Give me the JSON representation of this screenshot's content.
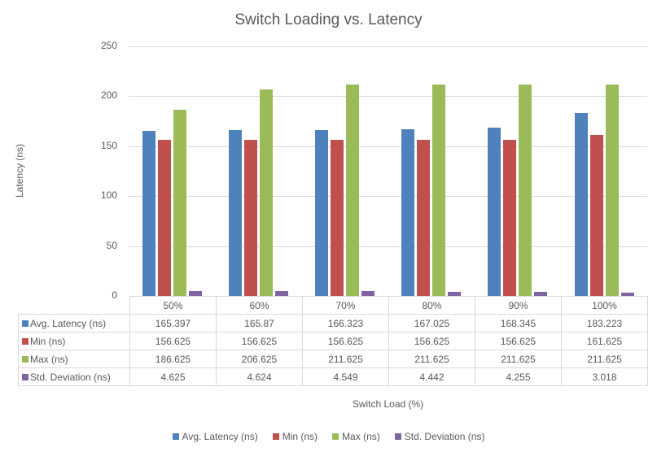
{
  "chart_data": {
    "type": "bar",
    "title": "Switch Loading vs. Latency",
    "xlabel": "Switch Load (%)",
    "ylabel": "Latency (ns)",
    "ylim": [
      0,
      250
    ],
    "yticks": [
      0,
      50,
      100,
      150,
      200,
      250
    ],
    "grid": true,
    "legend_position": "bottom",
    "data_table": true,
    "categories": [
      "50%",
      "60%",
      "70%",
      "80%",
      "90%",
      "100%"
    ],
    "series": [
      {
        "name": "Avg. Latency (ns)",
        "color": "#4f81bd",
        "values": [
          165.397,
          165.87,
          166.323,
          167.025,
          168.345,
          183.223
        ],
        "labels": [
          "165.397",
          "165.87",
          "166.323",
          "167.025",
          "168.345",
          "183.223"
        ]
      },
      {
        "name": "Min (ns)",
        "color": "#c0504d",
        "values": [
          156.625,
          156.625,
          156.625,
          156.625,
          156.625,
          161.625
        ],
        "labels": [
          "156.625",
          "156.625",
          "156.625",
          "156.625",
          "156.625",
          "161.625"
        ]
      },
      {
        "name": "Max (ns)",
        "color": "#9bbb59",
        "values": [
          186.625,
          206.625,
          211.625,
          211.625,
          211.625,
          211.625
        ],
        "labels": [
          "186.625",
          "206.625",
          "211.625",
          "211.625",
          "211.625",
          "211.625"
        ]
      },
      {
        "name": "Std. Deviation (ns)",
        "color": "#8064a2",
        "values": [
          4.625,
          4.624,
          4.549,
          4.442,
          4.255,
          3.018
        ],
        "labels": [
          "4.625",
          "4.624",
          "4.549",
          "4.442",
          "4.255",
          "3.018"
        ]
      }
    ]
  }
}
